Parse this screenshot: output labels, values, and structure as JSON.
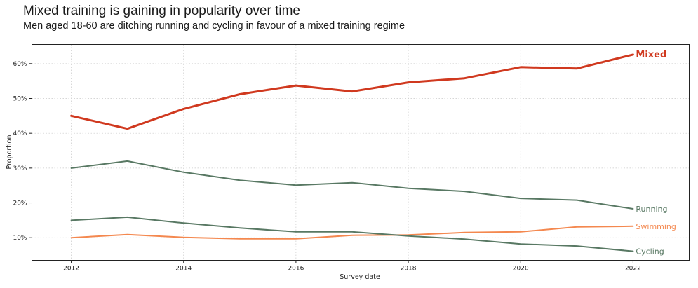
{
  "header": {
    "title": "Mixed training is gaining in popularity over time",
    "subtitle": "Men aged 18-60 are ditching running and cycling in favour of a mixed training regime"
  },
  "chart_data": {
    "type": "line",
    "title": "Mixed training is gaining in popularity over time",
    "subtitle": "Men aged 18-60 are ditching running and cycling in favour of a mixed training regime",
    "xlabel": "Survey date",
    "ylabel": "Proportion",
    "x": [
      2012,
      2013,
      2014,
      2015,
      2016,
      2017,
      2018,
      2019,
      2020,
      2021,
      2022
    ],
    "xlim": [
      2011.3,
      2023.0
    ],
    "ylim": [
      3.5,
      65.5
    ],
    "x_ticks": [
      2012,
      2014,
      2016,
      2018,
      2020,
      2022
    ],
    "y_ticks": [
      10,
      20,
      30,
      40,
      50,
      60
    ],
    "y_tick_labels": [
      "10%",
      "20%",
      "30%",
      "40%",
      "50%",
      "60%"
    ],
    "grid": true,
    "legend": "labels at line ends (right)",
    "series": [
      {
        "name": "Mixed",
        "color": "#d0391f",
        "values": [
          45.0,
          41.3,
          47.0,
          51.2,
          53.7,
          52.0,
          54.6,
          55.8,
          59.0,
          58.6,
          62.6
        ]
      },
      {
        "name": "Running",
        "color": "#587863",
        "values": [
          30.0,
          32.0,
          28.8,
          26.5,
          25.1,
          25.8,
          24.2,
          23.3,
          21.3,
          20.8,
          18.3
        ]
      },
      {
        "name": "Swimming",
        "color": "#f4884f",
        "values": [
          10.0,
          10.9,
          10.1,
          9.7,
          9.7,
          10.7,
          10.8,
          11.5,
          11.7,
          13.1,
          13.3
        ]
      },
      {
        "name": "Cycling",
        "color": "#587863",
        "values": [
          15.0,
          15.9,
          14.2,
          12.8,
          11.7,
          11.7,
          10.5,
          9.6,
          8.2,
          7.6,
          6.1
        ]
      }
    ]
  }
}
